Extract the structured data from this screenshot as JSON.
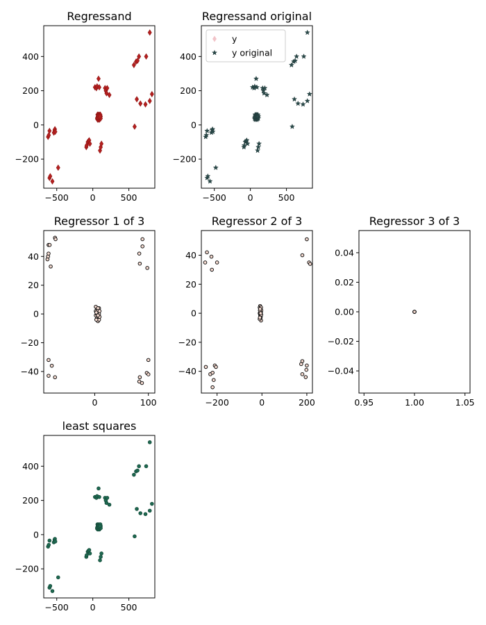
{
  "colors": {
    "regressand": "#b5201f",
    "original": "#2a4a4a",
    "original_edge": "#1f3838",
    "ls": "#1e6b52",
    "regressor_face": "#f7dcd2",
    "regressor_edge": "#111111",
    "y_marker": "#f2c4c9"
  },
  "chart_data": [
    {
      "type": "scatter",
      "title": "Regressand",
      "marker": "diamond",
      "color_key": "regressand",
      "xlim": [
        -680,
        860
      ],
      "ylim": [
        -370,
        580
      ],
      "xticks": [
        -500,
        0,
        500
      ],
      "yticks": [
        -200,
        0,
        200,
        400
      ],
      "points_ref": "regressand"
    },
    {
      "type": "scatter",
      "title": "Regressand original",
      "marker": "star",
      "color_key": "original",
      "xlim": [
        -680,
        860
      ],
      "ylim": [
        -370,
        580
      ],
      "xticks": [
        -500,
        0,
        500
      ],
      "yticks": [
        -200,
        0,
        200,
        400
      ],
      "points_ref": "regressand",
      "legend": {
        "placement": "top-left",
        "entries": [
          "y",
          "y original"
        ]
      }
    },
    {
      "type": "scatter",
      "title": "Regressor 1 of 3",
      "marker": "circle",
      "color_key": "regressor_face",
      "xlim": [
        -95,
        112
      ],
      "ylim": [
        -55,
        58
      ],
      "xticks": [
        0,
        100
      ],
      "yticks": [
        -40,
        -20,
        0,
        20,
        40
      ],
      "points": [
        [
          -88,
          38
        ],
        [
          -87,
          40
        ],
        [
          -86,
          42
        ],
        [
          -86,
          48
        ],
        [
          -84,
          48
        ],
        [
          -82,
          33
        ],
        [
          -74,
          53
        ],
        [
          -73,
          52
        ],
        [
          -86,
          -32
        ],
        [
          -80,
          -36
        ],
        [
          -74,
          -44
        ],
        [
          -86,
          -43
        ],
        [
          89,
          52
        ],
        [
          89,
          47
        ],
        [
          83,
          42
        ],
        [
          84,
          35
        ],
        [
          98,
          32
        ],
        [
          100,
          -32
        ],
        [
          97,
          -41
        ],
        [
          100,
          -42
        ],
        [
          88,
          -48
        ],
        [
          83,
          -47
        ],
        [
          84,
          -44
        ],
        [
          2,
          5
        ],
        [
          4,
          3
        ],
        [
          6,
          1
        ],
        [
          2,
          -1
        ],
        [
          4,
          -3
        ],
        [
          6,
          -5
        ],
        [
          8,
          4
        ],
        [
          8,
          0
        ],
        [
          8,
          -4
        ],
        [
          2,
          2
        ],
        [
          3,
          -4
        ],
        [
          6,
          4
        ],
        [
          7,
          -2
        ],
        [
          4,
          0
        ],
        [
          5,
          2
        ],
        [
          9,
          2
        ],
        [
          9,
          -2
        ],
        [
          3,
          1
        ],
        [
          6,
          -1
        ]
      ]
    },
    {
      "type": "scatter",
      "title": "Regressor 2 of 3",
      "marker": "circle",
      "color_key": "regressor_face",
      "xlim": [
        -270,
        225
      ],
      "ylim": [
        -55,
        57
      ],
      "xticks": [
        -200,
        0,
        200
      ],
      "yticks": [
        -40,
        -20,
        0,
        20,
        40
      ],
      "points": [
        [
          -245,
          42
        ],
        [
          -253,
          35
        ],
        [
          -225,
          39
        ],
        [
          -223,
          30
        ],
        [
          -200,
          35
        ],
        [
          -250,
          -37
        ],
        [
          -230,
          -42
        ],
        [
          -220,
          -41
        ],
        [
          -210,
          -36
        ],
        [
          -205,
          -37
        ],
        [
          -215,
          -46
        ],
        [
          -220,
          -51
        ],
        [
          200,
          51
        ],
        [
          180,
          40
        ],
        [
          210,
          35
        ],
        [
          215,
          34
        ],
        [
          175,
          -35
        ],
        [
          180,
          -33
        ],
        [
          200,
          -36
        ],
        [
          198,
          -39
        ],
        [
          180,
          -42
        ],
        [
          195,
          -44
        ],
        [
          -8,
          5
        ],
        [
          -6,
          3
        ],
        [
          -4,
          1
        ],
        [
          -8,
          -1
        ],
        [
          -6,
          -3
        ],
        [
          -4,
          -5
        ],
        [
          -10,
          4
        ],
        [
          -10,
          0
        ],
        [
          -10,
          -4
        ],
        [
          -5,
          4
        ],
        [
          -7,
          -2
        ],
        [
          -3,
          2
        ],
        [
          -9,
          2
        ],
        [
          -5,
          -2
        ],
        [
          -7,
          0
        ],
        [
          -3,
          -1
        ],
        [
          -6,
          0
        ],
        [
          -9,
          -3
        ],
        [
          -4,
          4
        ],
        [
          -8,
          3
        ]
      ]
    },
    {
      "type": "scatter",
      "title": "Regressor 3 of 3",
      "marker": "circle",
      "color_key": "regressor_face",
      "xlim": [
        0.945,
        1.055
      ],
      "ylim": [
        -0.055,
        0.055
      ],
      "xticks": [
        0.95,
        1.0,
        1.05
      ],
      "yticks": [
        -0.04,
        -0.02,
        0.0,
        0.02,
        0.04
      ],
      "tick_format": 2,
      "points": [
        [
          1,
          0
        ],
        [
          1,
          0
        ],
        [
          1,
          0
        ],
        [
          1,
          0
        ],
        [
          1,
          0
        ]
      ]
    },
    {
      "type": "scatter",
      "title": "least squares",
      "marker": "circle",
      "color_key": "ls",
      "xlim": [
        -680,
        860
      ],
      "ylim": [
        -370,
        580
      ],
      "xticks": [
        -500,
        0,
        500
      ],
      "yticks": [
        -200,
        0,
        200,
        400
      ],
      "points_ref": "regressand"
    }
  ],
  "regressand": [
    [
      -620,
      -70
    ],
    [
      -610,
      -60
    ],
    [
      -600,
      -35
    ],
    [
      -540,
      -45
    ],
    [
      -530,
      -30
    ],
    [
      -525,
      -25
    ],
    [
      -520,
      -40
    ],
    [
      -600,
      -310
    ],
    [
      -590,
      -300
    ],
    [
      -560,
      -330
    ],
    [
      -480,
      -250
    ],
    [
      -90,
      -130
    ],
    [
      -85,
      -120
    ],
    [
      -70,
      -100
    ],
    [
      -60,
      -95
    ],
    [
      -50,
      -90
    ],
    [
      -40,
      -110
    ],
    [
      100,
      -150
    ],
    [
      110,
      -130
    ],
    [
      120,
      -110
    ],
    [
      30,
      220
    ],
    [
      50,
      215
    ],
    [
      60,
      225
    ],
    [
      80,
      270
    ],
    [
      90,
      220
    ],
    [
      170,
      215
    ],
    [
      180,
      200
    ],
    [
      190,
      185
    ],
    [
      230,
      175
    ],
    [
      200,
      215
    ],
    [
      570,
      350
    ],
    [
      600,
      370
    ],
    [
      620,
      375
    ],
    [
      640,
      400
    ],
    [
      740,
      400
    ],
    [
      790,
      540
    ],
    [
      580,
      -10
    ],
    [
      610,
      150
    ],
    [
      660,
      125
    ],
    [
      730,
      120
    ],
    [
      790,
      140
    ],
    [
      820,
      180
    ],
    [
      60,
      40
    ],
    [
      65,
      45
    ],
    [
      70,
      50
    ],
    [
      75,
      55
    ],
    [
      80,
      40
    ],
    [
      85,
      45
    ],
    [
      90,
      50
    ],
    [
      95,
      55
    ],
    [
      100,
      40
    ],
    [
      105,
      45
    ],
    [
      110,
      50
    ],
    [
      60,
      35
    ],
    [
      70,
      30
    ],
    [
      80,
      35
    ],
    [
      90,
      30
    ],
    [
      100,
      35
    ],
    [
      110,
      38
    ],
    [
      65,
      60
    ],
    [
      75,
      58
    ],
    [
      85,
      60
    ],
    [
      95,
      58
    ],
    [
      105,
      60
    ],
    [
      70,
      45
    ],
    [
      80,
      50
    ],
    [
      90,
      45
    ],
    [
      100,
      50
    ]
  ]
}
